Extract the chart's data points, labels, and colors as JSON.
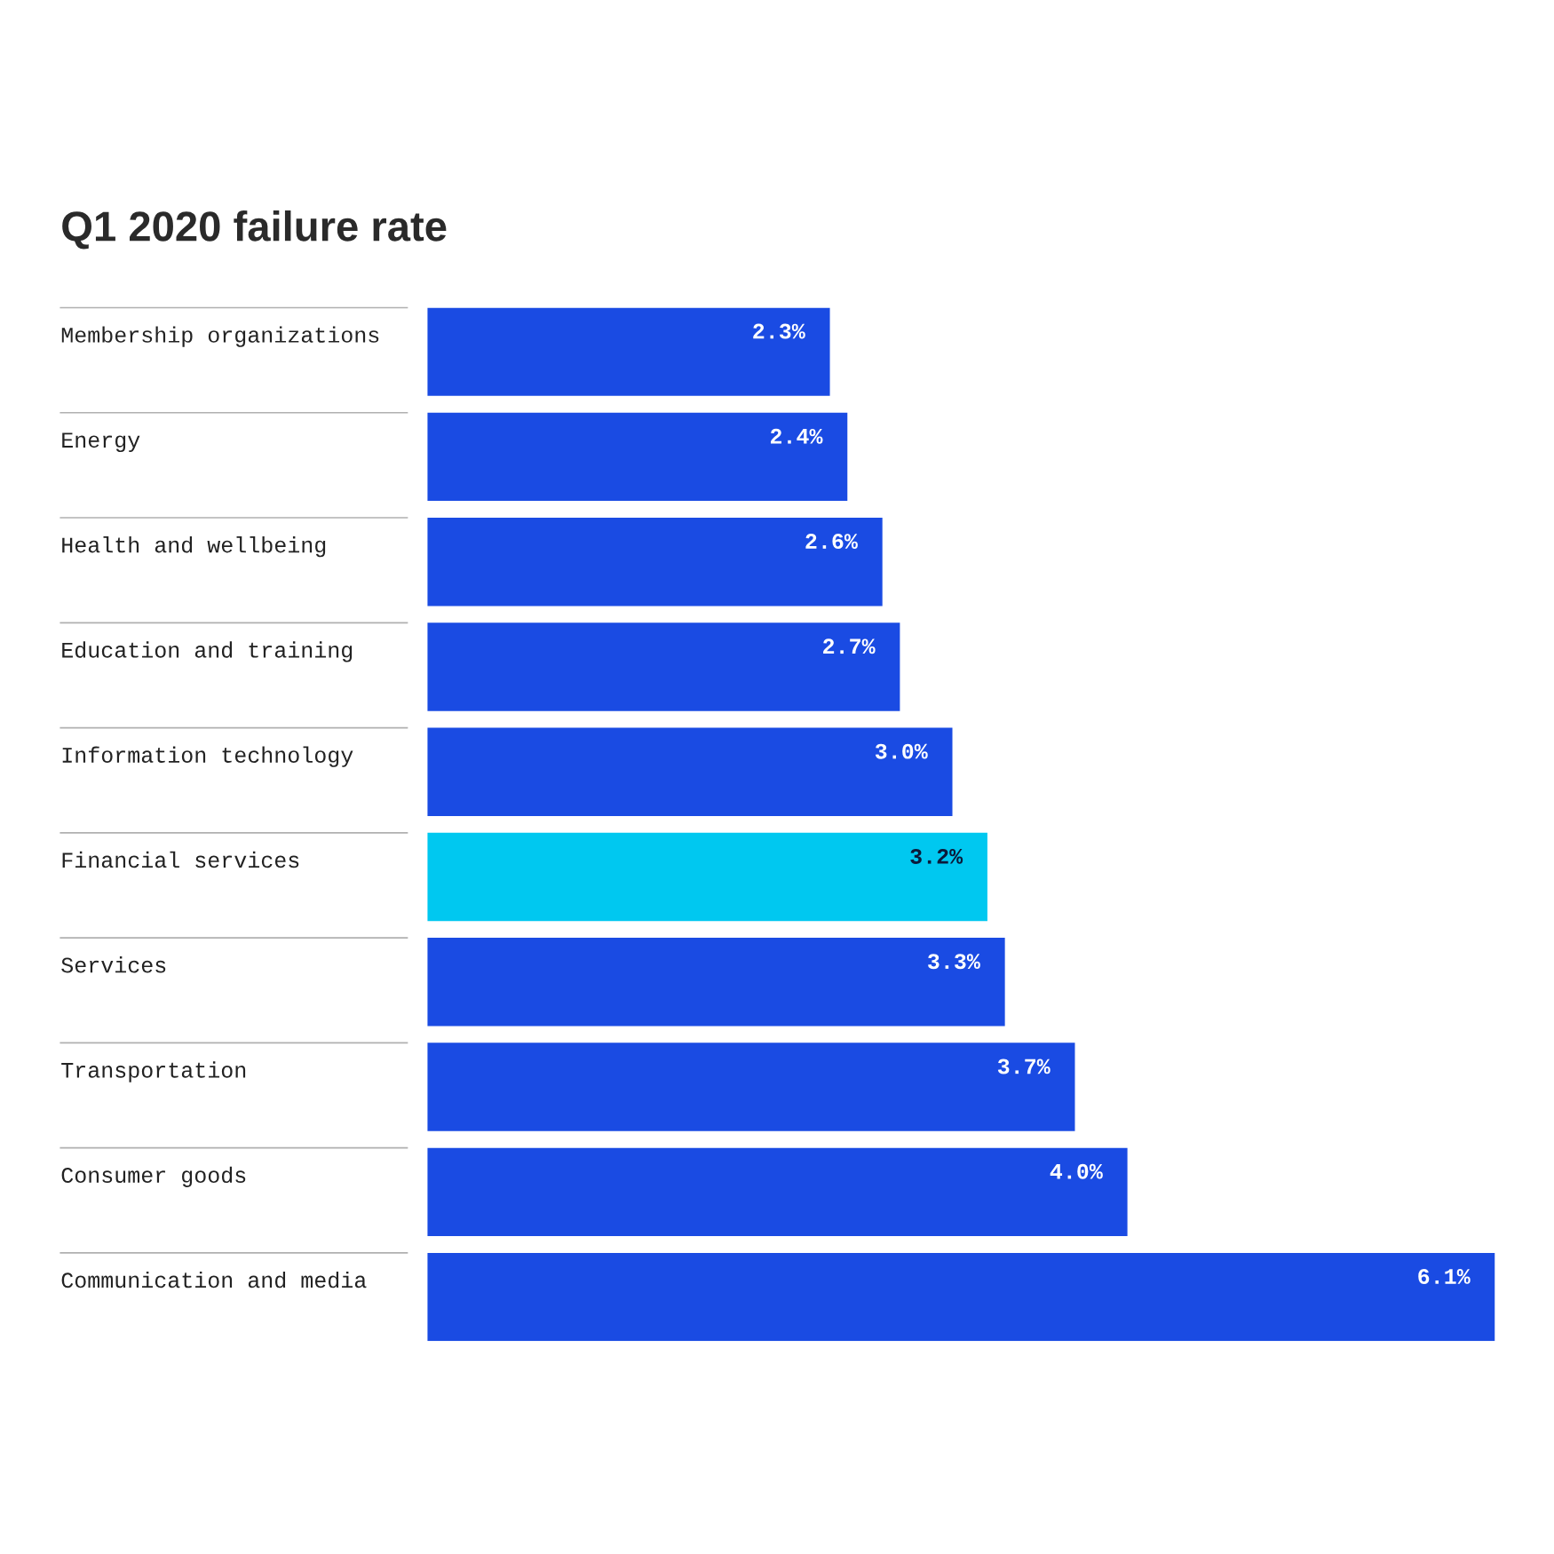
{
  "chart_data": {
    "type": "bar",
    "orientation": "horizontal",
    "title": "Q1 2020 failure rate",
    "categories": [
      "Membership organizations",
      "Energy",
      "Health and wellbeing",
      "Education and training",
      "Information technology",
      "Financial services",
      "Services",
      "Transportation",
      "Consumer goods",
      "Communication and media"
    ],
    "values": [
      2.3,
      2.4,
      2.6,
      2.7,
      3.0,
      3.2,
      3.3,
      3.7,
      4.0,
      6.1
    ],
    "colors": [
      "#1a4be3",
      "#1a4be3",
      "#1a4be3",
      "#1a4be3",
      "#1a4be3",
      "#00c8f0",
      "#1a4be3",
      "#1a4be3",
      "#1a4be3",
      "#1a4be3"
    ],
    "value_labels": [
      "2.3%",
      "2.4%",
      "2.6%",
      "2.7%",
      "3.0%",
      "3.2%",
      "3.3%",
      "3.7%",
      "4.0%",
      "6.1%"
    ],
    "xlim": [
      0,
      6.1
    ],
    "tick_labels": false
  }
}
